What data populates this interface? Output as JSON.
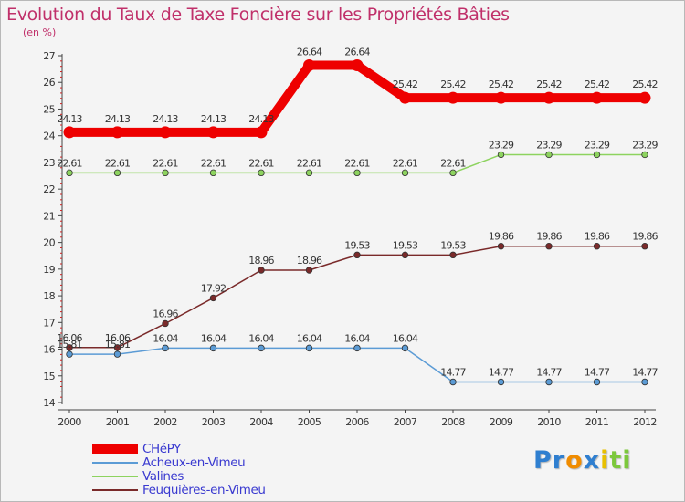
{
  "chart_data": {
    "type": "line",
    "title": "Evolution du Taux de Taxe Foncière sur les Propriétés Bâties",
    "ylabel": "(en %)",
    "xlabel": "",
    "ylim": [
      14,
      27
    ],
    "yticks": [
      14,
      15,
      16,
      17,
      18,
      19,
      20,
      21,
      22,
      23,
      24,
      25,
      26,
      27
    ],
    "categories": [
      "2000",
      "2001",
      "2002",
      "2003",
      "2004",
      "2005",
      "2006",
      "2007",
      "2008",
      "2009",
      "2010",
      "2011",
      "2012"
    ],
    "series": [
      {
        "name": "CHéPY",
        "color": "#ee0000",
        "style": "thick",
        "values": [
          24.13,
          24.13,
          24.13,
          24.13,
          24.13,
          26.64,
          26.64,
          25.42,
          25.42,
          25.42,
          25.42,
          25.42,
          25.42
        ],
        "labels": [
          "24.13",
          "24.13",
          "24.13",
          "24.13",
          "24.13",
          "26.64",
          "26.64",
          "25.42",
          "25.42",
          "25.42",
          "25.42",
          "25.42",
          "25.42"
        ]
      },
      {
        "name": "Acheux-en-Vimeu",
        "color": "#5b9bd5",
        "style": "thin",
        "values": [
          15.81,
          15.81,
          16.04,
          16.04,
          16.04,
          16.04,
          16.04,
          16.04,
          14.77,
          14.77,
          14.77,
          14.77,
          14.77
        ],
        "labels": [
          "15.81",
          "15.81",
          "16.04",
          "16.04",
          "16.04",
          "16.04",
          "16.04",
          "16.04",
          "14.77",
          "14.77",
          "14.77",
          "14.77",
          "14.77"
        ]
      },
      {
        "name": "Valines",
        "color": "#8dd35f",
        "style": "thin",
        "values": [
          22.61,
          22.61,
          22.61,
          22.61,
          22.61,
          22.61,
          22.61,
          22.61,
          22.61,
          23.29,
          23.29,
          23.29,
          23.29
        ],
        "labels": [
          "22.61",
          "22.61",
          "22.61",
          "22.61",
          "22.61",
          "22.61",
          "22.61",
          "22.61",
          "22.61",
          "23.29",
          "23.29",
          "23.29",
          "23.29"
        ]
      },
      {
        "name": "Feuquières-en-Vimeu",
        "color": "#7a2a2a",
        "style": "thin",
        "values": [
          16.06,
          16.06,
          16.96,
          17.92,
          18.96,
          18.96,
          19.53,
          19.53,
          19.53,
          19.86,
          19.86,
          19.86,
          19.86
        ],
        "labels": [
          "16.06",
          "16.06",
          "16.96",
          "17.92",
          "18.96",
          "18.96",
          "19.53",
          "19.53",
          "19.53",
          "19.86",
          "19.86",
          "19.86",
          "19.86"
        ]
      }
    ],
    "grid": false,
    "legend": "bottom-left"
  },
  "colors": {
    "title": "#c0306a",
    "legend_text": "#3a3ad0",
    "axis": "#444444",
    "minor_tick": "#cc2222"
  },
  "logo": {
    "text": "Proxiti",
    "letters": [
      {
        "ch": "P",
        "color": "#2f7fd0"
      },
      {
        "ch": "r",
        "color": "#2f7fd0"
      },
      {
        "ch": "o",
        "color": "#f08c00"
      },
      {
        "ch": "x",
        "color": "#2f7fd0"
      },
      {
        "ch": "i",
        "color": "#e8c000"
      },
      {
        "ch": "t",
        "color": "#7cc83c"
      },
      {
        "ch": "i",
        "color": "#7cc83c"
      }
    ]
  }
}
